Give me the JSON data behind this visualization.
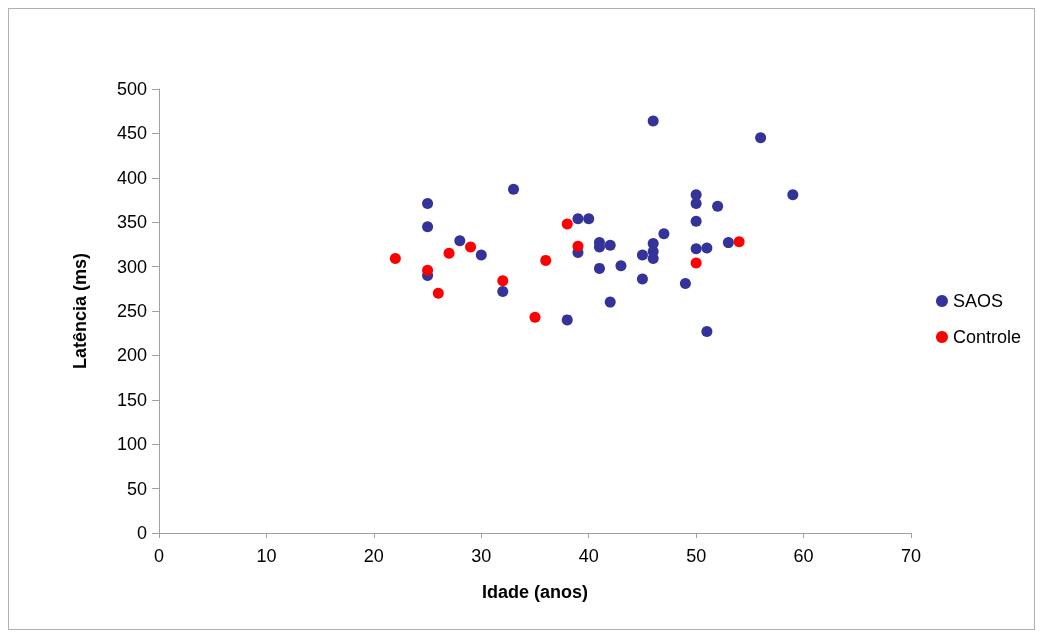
{
  "chart_data": {
    "type": "scatter",
    "xlabel": "Idade (anos)",
    "ylabel": "Latência (ms)",
    "xlim": [
      0,
      70
    ],
    "xticks": [
      0,
      10,
      20,
      30,
      40,
      50,
      60,
      70
    ],
    "ylim": [
      0,
      500
    ],
    "yticks": [
      0,
      50,
      100,
      150,
      200,
      250,
      300,
      350,
      400,
      450,
      500
    ],
    "grid": false,
    "legend": "right",
    "marker": "circle",
    "series": [
      {
        "name": "SAOS",
        "color": "#333399",
        "x": [
          25,
          25,
          25,
          28,
          30,
          32,
          33,
          38,
          39,
          39,
          40,
          41,
          41,
          41,
          42,
          42,
          43,
          45,
          45,
          46,
          46,
          46,
          46,
          47,
          49,
          50,
          50,
          50,
          50,
          51,
          51,
          52,
          53,
          56,
          59
        ],
        "values": [
          371,
          345,
          290,
          329,
          313,
          272,
          387,
          240,
          354,
          316,
          354,
          327,
          322,
          298,
          324,
          260,
          301,
          313,
          286,
          464,
          326,
          317,
          309,
          337,
          281,
          381,
          371,
          351,
          320,
          321,
          227,
          368,
          327,
          445,
          381
        ]
      },
      {
        "name": "Controle",
        "color": "#ff0000",
        "x": [
          22,
          25,
          26,
          27,
          29,
          32,
          35,
          36,
          38,
          39,
          50,
          54
        ],
        "values": [
          309,
          296,
          270,
          315,
          322,
          284,
          243,
          307,
          348,
          323,
          304,
          328
        ]
      }
    ]
  }
}
